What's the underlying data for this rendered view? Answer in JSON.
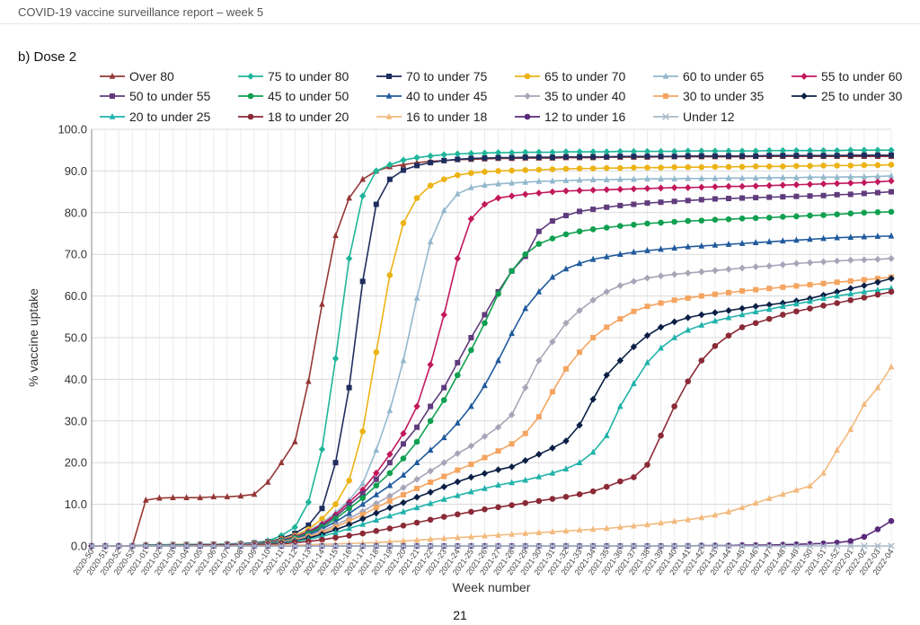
{
  "page": {
    "header": "COVID-19 vaccine surveillance report – week 5",
    "section_title": "b) Dose 2",
    "page_number": "21"
  },
  "chart_data": {
    "type": "line",
    "xlabel": "Week number",
    "ylabel": "% vaccine uptake",
    "ylim": [
      0,
      100
    ],
    "yticks": [
      "0.0",
      "10.0",
      "20.0",
      "30.0",
      "40.0",
      "50.0",
      "60.0",
      "70.0",
      "80.0",
      "90.0",
      "100.0"
    ],
    "grid": true,
    "legend_position": "top",
    "categories": [
      "2020-50",
      "2020-51",
      "2020-52",
      "2020-53",
      "2021-01",
      "2021-02",
      "2021-03",
      "2021-04",
      "2021-05",
      "2021-06",
      "2021-07",
      "2021-08",
      "2021-09",
      "2021-10",
      "2021-11",
      "2021-12",
      "2021-13",
      "2021-14",
      "2021-15",
      "2021-16",
      "2021-17",
      "2021-18",
      "2021-19",
      "2021-20",
      "2021-21",
      "2021-22",
      "2021-23",
      "2021-24",
      "2021-25",
      "2021-26",
      "2021-27",
      "2021-28",
      "2021-29",
      "2021-30",
      "2021-31",
      "2021-32",
      "2021-33",
      "2021-34",
      "2021-35",
      "2021-36",
      "2021-37",
      "2021-38",
      "2021-39",
      "2021-40",
      "2021-41",
      "2021-42",
      "2021-43",
      "2021-44",
      "2021-45",
      "2021-46",
      "2021-47",
      "2021-48",
      "2021-49",
      "2021-50",
      "2021-51",
      "2021-52",
      "2022-01",
      "2022-02",
      "2022-03",
      "2022-04"
    ],
    "series": [
      {
        "name": "Over 80",
        "color": "#953735",
        "marker": "triangle",
        "values": [
          0,
          0,
          0,
          0,
          11,
          11.5,
          11.6,
          11.6,
          11.6,
          11.8,
          11.8,
          12,
          12.4,
          15.3,
          20,
          25,
          39.5,
          58,
          74.5,
          83.5,
          88,
          90,
          91,
          91.5,
          92,
          92.3,
          92.5,
          92.7,
          92.8,
          92.9,
          93,
          93,
          93.1,
          93.1,
          93.1,
          93.2,
          93.2,
          93.2,
          93.3,
          93.3,
          93.3,
          93.3,
          93.4,
          93.4,
          93.4,
          93.4,
          93.4,
          93.4,
          93.4,
          93.5,
          93.5,
          93.5,
          93.5,
          93.5,
          93.5,
          93.5,
          93.5,
          93.5,
          93.5,
          93.5
        ]
      },
      {
        "name": "75 to under 80",
        "color": "#1fb59b",
        "marker": "diamond",
        "values": [
          0,
          0,
          0,
          0,
          0.2,
          0.3,
          0.3,
          0.3,
          0.4,
          0.4,
          0.5,
          0.6,
          0.8,
          1.2,
          2.5,
          4.5,
          10.5,
          23.2,
          45,
          69,
          84,
          90,
          91.5,
          92.6,
          93.2,
          93.6,
          93.9,
          94.1,
          94.2,
          94.3,
          94.4,
          94.4,
          94.5,
          94.5,
          94.5,
          94.6,
          94.6,
          94.6,
          94.6,
          94.7,
          94.7,
          94.7,
          94.7,
          94.7,
          94.8,
          94.8,
          94.8,
          94.8,
          94.8,
          94.8,
          94.9,
          94.9,
          94.9,
          94.9,
          94.9,
          94.9,
          95,
          95,
          95,
          95
        ]
      },
      {
        "name": "70 to under 75",
        "color": "#1f2d5e",
        "marker": "square",
        "values": [
          0,
          0,
          0,
          0,
          0.2,
          0.2,
          0.3,
          0.3,
          0.3,
          0.4,
          0.4,
          0.5,
          0.7,
          1,
          1.8,
          3,
          5,
          9,
          20,
          38,
          63.5,
          82,
          88,
          90.2,
          91.3,
          92,
          92.5,
          92.8,
          93,
          93.1,
          93.2,
          93.2,
          93.3,
          93.3,
          93.3,
          93.4,
          93.4,
          93.4,
          93.4,
          93.5,
          93.5,
          93.5,
          93.5,
          93.5,
          93.6,
          93.6,
          93.6,
          93.6,
          93.6,
          93.6,
          93.7,
          93.7,
          93.7,
          93.7,
          93.7,
          93.7,
          93.8,
          93.8,
          93.8,
          93.8
        ]
      },
      {
        "name": "65 to under 70",
        "color": "#ecb314",
        "marker": "circle",
        "values": [
          0,
          0,
          0,
          0,
          0.2,
          0.2,
          0.3,
          0.3,
          0.3,
          0.3,
          0.4,
          0.5,
          0.6,
          0.9,
          1.6,
          2.5,
          4,
          6.5,
          10,
          15.7,
          27.5,
          46.5,
          65,
          77.5,
          83.5,
          86.5,
          88,
          89,
          89.5,
          89.8,
          90,
          90.1,
          90.2,
          90.3,
          90.4,
          90.5,
          90.6,
          90.6,
          90.7,
          90.7,
          90.8,
          90.8,
          90.8,
          90.9,
          90.9,
          90.9,
          91,
          91,
          91,
          91.1,
          91.1,
          91.1,
          91.2,
          91.2,
          91.3,
          91.3,
          91.3,
          91.4,
          91.4,
          91.5
        ]
      },
      {
        "name": "60 to under 65",
        "color": "#93b8cd",
        "marker": "triangle",
        "values": [
          0,
          0,
          0,
          0,
          0.2,
          0.2,
          0.2,
          0.3,
          0.3,
          0.3,
          0.4,
          0.5,
          0.6,
          0.9,
          1.5,
          2.3,
          3.6,
          5.5,
          8,
          11,
          15,
          23,
          32.5,
          44.5,
          59.5,
          73,
          80.5,
          84.5,
          86,
          86.6,
          86.9,
          87.1,
          87.3,
          87.5,
          87.6,
          87.7,
          87.8,
          87.9,
          87.9,
          88,
          88,
          88.1,
          88.1,
          88.1,
          88.2,
          88.2,
          88.2,
          88.3,
          88.3,
          88.3,
          88.4,
          88.4,
          88.4,
          88.5,
          88.5,
          88.5,
          88.6,
          88.6,
          88.7,
          88.8
        ]
      },
      {
        "name": "55 to under 60",
        "color": "#c2185b",
        "marker": "diamond",
        "values": [
          0,
          0,
          0,
          0,
          0.2,
          0.2,
          0.2,
          0.3,
          0.3,
          0.3,
          0.4,
          0.5,
          0.6,
          0.9,
          1.4,
          2.2,
          3.4,
          5.2,
          7.5,
          10.5,
          13.5,
          17.5,
          22,
          27,
          33.5,
          43.5,
          55.5,
          69,
          78.5,
          82,
          83.5,
          84,
          84.4,
          84.7,
          85,
          85.2,
          85.3,
          85.4,
          85.5,
          85.6,
          85.7,
          85.8,
          85.9,
          86,
          86,
          86.1,
          86.2,
          86.3,
          86.3,
          86.4,
          86.5,
          86.6,
          86.7,
          86.8,
          86.9,
          87,
          87.1,
          87.2,
          87.4,
          87.6
        ]
      },
      {
        "name": "50 to under 55",
        "color": "#5f3b7c",
        "marker": "square",
        "values": [
          0,
          0,
          0,
          0,
          0.2,
          0.2,
          0.2,
          0.3,
          0.3,
          0.3,
          0.4,
          0.4,
          0.5,
          0.8,
          1.3,
          2,
          3.2,
          4.9,
          7,
          9.8,
          12.5,
          16,
          20,
          24.5,
          28.5,
          33.5,
          38,
          44,
          50,
          55.5,
          61,
          66,
          69.5,
          75.5,
          78,
          79.3,
          80.3,
          80.8,
          81.3,
          81.7,
          82,
          82.3,
          82.5,
          82.7,
          82.9,
          83.1,
          83.3,
          83.4,
          83.5,
          83.6,
          83.7,
          83.8,
          83.9,
          84,
          84.1,
          84.3,
          84.4,
          84.6,
          84.8,
          85
        ]
      },
      {
        "name": "45 to under 50",
        "color": "#10a050",
        "marker": "circle",
        "values": [
          0,
          0,
          0,
          0,
          0.2,
          0.2,
          0.2,
          0.3,
          0.3,
          0.3,
          0.3,
          0.4,
          0.5,
          0.8,
          1.2,
          1.9,
          3,
          4.5,
          6.5,
          9,
          11.5,
          14.5,
          17.5,
          21,
          25,
          30,
          35,
          41,
          47,
          53.5,
          60.5,
          66,
          70,
          72.5,
          73.8,
          74.8,
          75.5,
          76,
          76.4,
          76.8,
          77.1,
          77.4,
          77.6,
          77.8,
          78,
          78.1,
          78.3,
          78.4,
          78.6,
          78.7,
          78.8,
          79,
          79.1,
          79.3,
          79.4,
          79.6,
          79.8,
          80,
          80.1,
          80.2
        ]
      },
      {
        "name": "40 to under 45",
        "color": "#1f5a9c",
        "marker": "triangle",
        "values": [
          0,
          0,
          0,
          0,
          0.2,
          0.2,
          0.2,
          0.2,
          0.3,
          0.3,
          0.3,
          0.4,
          0.5,
          0.7,
          1.1,
          1.7,
          2.7,
          4.1,
          5.8,
          7.8,
          10,
          12.3,
          14.5,
          17,
          20,
          23,
          26,
          29.5,
          33.5,
          38.5,
          44.5,
          51,
          57,
          61,
          64.5,
          66.5,
          67.8,
          68.8,
          69.4,
          70,
          70.5,
          70.9,
          71.2,
          71.5,
          71.8,
          72,
          72.2,
          72.4,
          72.6,
          72.8,
          73,
          73.2,
          73.4,
          73.6,
          73.8,
          74,
          74.1,
          74.2,
          74.3,
          74.4
        ]
      },
      {
        "name": "35 to under 40",
        "color": "#a6a6b8",
        "marker": "diamond",
        "values": [
          0,
          0,
          0,
          0,
          0.2,
          0.2,
          0.2,
          0.2,
          0.2,
          0.3,
          0.3,
          0.4,
          0.5,
          0.7,
          1,
          1.6,
          2.4,
          3.6,
          5,
          6.6,
          8.3,
          10.2,
          12,
          14,
          16,
          18,
          20,
          22.2,
          24,
          26.3,
          28.5,
          31.5,
          38,
          44.5,
          49,
          53.5,
          56.5,
          59,
          61,
          62.5,
          63.5,
          64.3,
          64.8,
          65.2,
          65.5,
          65.8,
          66.1,
          66.4,
          66.7,
          67,
          67.2,
          67.5,
          67.8,
          68,
          68.2,
          68.4,
          68.6,
          68.7,
          68.8,
          69
        ]
      },
      {
        "name": "30 to under 35",
        "color": "#f4a460",
        "marker": "square",
        "values": [
          0,
          0,
          0,
          0,
          0.2,
          0.2,
          0.2,
          0.2,
          0.2,
          0.3,
          0.3,
          0.3,
          0.4,
          0.6,
          0.9,
          1.4,
          2.2,
          3.2,
          4.5,
          6,
          7.5,
          9.2,
          10.8,
          12.3,
          13.8,
          15.3,
          16.7,
          18.2,
          19.6,
          21.2,
          22.8,
          24.5,
          27,
          31,
          37,
          42.5,
          46.5,
          50,
          52.5,
          54.5,
          56.3,
          57.5,
          58.3,
          59,
          59.5,
          60,
          60.4,
          60.8,
          61.2,
          61.5,
          61.8,
          62.1,
          62.4,
          62.7,
          63,
          63.3,
          63.6,
          63.9,
          64.2,
          64.5
        ]
      },
      {
        "name": "25 to under 30",
        "color": "#0b1f45",
        "marker": "diamond",
        "values": [
          0,
          0,
          0,
          0,
          0.2,
          0.2,
          0.2,
          0.2,
          0.2,
          0.2,
          0.3,
          0.3,
          0.4,
          0.6,
          0.8,
          1.2,
          1.9,
          2.8,
          3.9,
          5.1,
          6.5,
          7.9,
          9.2,
          10.4,
          11.7,
          12.9,
          14.2,
          15.4,
          16.5,
          17.4,
          18.3,
          19,
          20.5,
          22,
          23.5,
          25.2,
          29,
          35.2,
          41,
          44.5,
          47.8,
          50.5,
          52.5,
          53.8,
          54.8,
          55.5,
          56,
          56.5,
          57,
          57.5,
          57.9,
          58.3,
          58.8,
          59.4,
          60.2,
          61,
          61.8,
          62.5,
          63.3,
          64.2
        ]
      },
      {
        "name": "20 to under 25",
        "color": "#20b2aa",
        "marker": "triangle",
        "values": [
          0,
          0,
          0,
          0,
          0.2,
          0.2,
          0.2,
          0.2,
          0.2,
          0.2,
          0.3,
          0.3,
          0.4,
          0.5,
          0.7,
          1.1,
          1.6,
          2.3,
          3.2,
          4.2,
          5.2,
          6.2,
          7.2,
          8.2,
          9.2,
          10.2,
          11.2,
          12.1,
          13,
          13.8,
          14.6,
          15.2,
          15.8,
          16.6,
          17.5,
          18.5,
          20,
          22.5,
          26.5,
          33.5,
          39,
          44,
          47.5,
          50,
          51.8,
          53,
          54,
          54.8,
          55.5,
          56.2,
          56.8,
          57.5,
          58.1,
          58.7,
          59.4,
          60,
          60.5,
          61,
          61.4,
          61.8
        ]
      },
      {
        "name": "18 to under 20",
        "color": "#8b2a37",
        "marker": "circle",
        "values": [
          0,
          0,
          0,
          0,
          0.1,
          0.1,
          0.1,
          0.1,
          0.2,
          0.2,
          0.2,
          0.2,
          0.3,
          0.4,
          0.5,
          0.8,
          1.1,
          1.5,
          2,
          2.5,
          3,
          3.6,
          4.2,
          4.9,
          5.6,
          6.3,
          7,
          7.6,
          8.2,
          8.8,
          9.3,
          9.8,
          10.3,
          10.8,
          11.3,
          11.8,
          12.4,
          13.1,
          14.2,
          15.5,
          16.5,
          19.5,
          26.5,
          33.5,
          39.5,
          44.5,
          48,
          50.5,
          52.5,
          53.5,
          54.5,
          55.5,
          56.3,
          57,
          57.7,
          58.3,
          59,
          59.6,
          60.3,
          61
        ]
      },
      {
        "name": "16 to under 18",
        "color": "#f2ba7e",
        "marker": "triangle",
        "values": [
          0,
          0,
          0,
          0,
          0,
          0,
          0,
          0,
          0,
          0,
          0,
          0.1,
          0.1,
          0.1,
          0.2,
          0.2,
          0.3,
          0.4,
          0.5,
          0.6,
          0.7,
          0.8,
          1,
          1.2,
          1.4,
          1.6,
          1.8,
          2,
          2.2,
          2.4,
          2.6,
          2.8,
          3,
          3.2,
          3.4,
          3.6,
          3.8,
          4,
          4.2,
          4.5,
          4.8,
          5.1,
          5.5,
          5.9,
          6.3,
          6.8,
          7.4,
          8.2,
          9.2,
          10.3,
          11.4,
          12.4,
          13.4,
          14.4,
          17.5,
          23,
          28,
          34,
          38,
          43
        ]
      },
      {
        "name": "12 to under 16",
        "color": "#5a2a7a",
        "marker": "circle",
        "values": [
          0,
          0,
          0,
          0,
          0,
          0,
          0,
          0,
          0,
          0,
          0,
          0,
          0,
          0,
          0,
          0,
          0,
          0,
          0,
          0,
          0,
          0,
          0,
          0,
          0,
          0,
          0,
          0,
          0,
          0,
          0,
          0,
          0,
          0,
          0,
          0,
          0,
          0,
          0,
          0,
          0,
          0,
          0,
          0,
          0,
          0.1,
          0.1,
          0.1,
          0.2,
          0.2,
          0.2,
          0.3,
          0.4,
          0.5,
          0.6,
          0.8,
          1.2,
          2.2,
          4,
          6
        ]
      },
      {
        "name": "Under 12",
        "color": "#a8b8c8",
        "marker": "x",
        "values": [
          0,
          0,
          0,
          0,
          0,
          0,
          0,
          0,
          0,
          0,
          0,
          0,
          0,
          0,
          0,
          0,
          0,
          0,
          0,
          0,
          0,
          0,
          0,
          0,
          0,
          0,
          0,
          0,
          0,
          0,
          0,
          0,
          0,
          0,
          0,
          0,
          0,
          0,
          0,
          0,
          0,
          0,
          0,
          0,
          0,
          0,
          0,
          0,
          0,
          0,
          0,
          0,
          0,
          0,
          0,
          0,
          0,
          0,
          0,
          0
        ]
      }
    ]
  }
}
